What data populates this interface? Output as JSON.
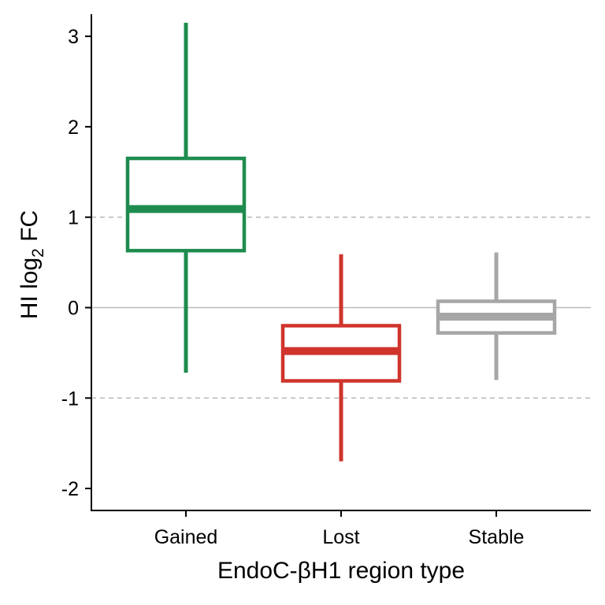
{
  "chart_data": {
    "type": "box",
    "xlabel": "EndoC-βH1 region type",
    "ylabel": {
      "main": "HI log",
      "subscript": "2",
      "suffix": " FC"
    },
    "ylim": [
      -2.25,
      3.2
    ],
    "yticks": [
      -2,
      -1,
      0,
      1,
      2,
      3
    ],
    "ytick_labels": [
      "-2",
      "-1",
      "0",
      "1",
      "2",
      "3"
    ],
    "reference_lines": [
      {
        "y": 0,
        "style": "solid",
        "color": "#bbbbbb"
      },
      {
        "y": 1,
        "style": "dashed",
        "color": "#bbbbbb"
      },
      {
        "y": -1,
        "style": "dashed",
        "color": "#bbbbbb"
      }
    ],
    "categories": [
      "Gained",
      "Lost",
      "Stable"
    ],
    "boxes": [
      {
        "category": "Gained",
        "color": "#1e8c4e",
        "whisker_low": -0.72,
        "q1": 0.63,
        "median": 1.09,
        "q3": 1.65,
        "whisker_high": 3.15
      },
      {
        "category": "Lost",
        "color": "#d0342c",
        "whisker_low": -1.7,
        "q1": -0.81,
        "median": -0.48,
        "q3": -0.2,
        "whisker_high": 0.59
      },
      {
        "category": "Stable",
        "color": "#a6a6a6",
        "whisker_low": -0.8,
        "q1": -0.28,
        "median": -0.1,
        "q3": 0.07,
        "whisker_high": 0.61
      }
    ],
    "grid": false,
    "legend": "none"
  }
}
